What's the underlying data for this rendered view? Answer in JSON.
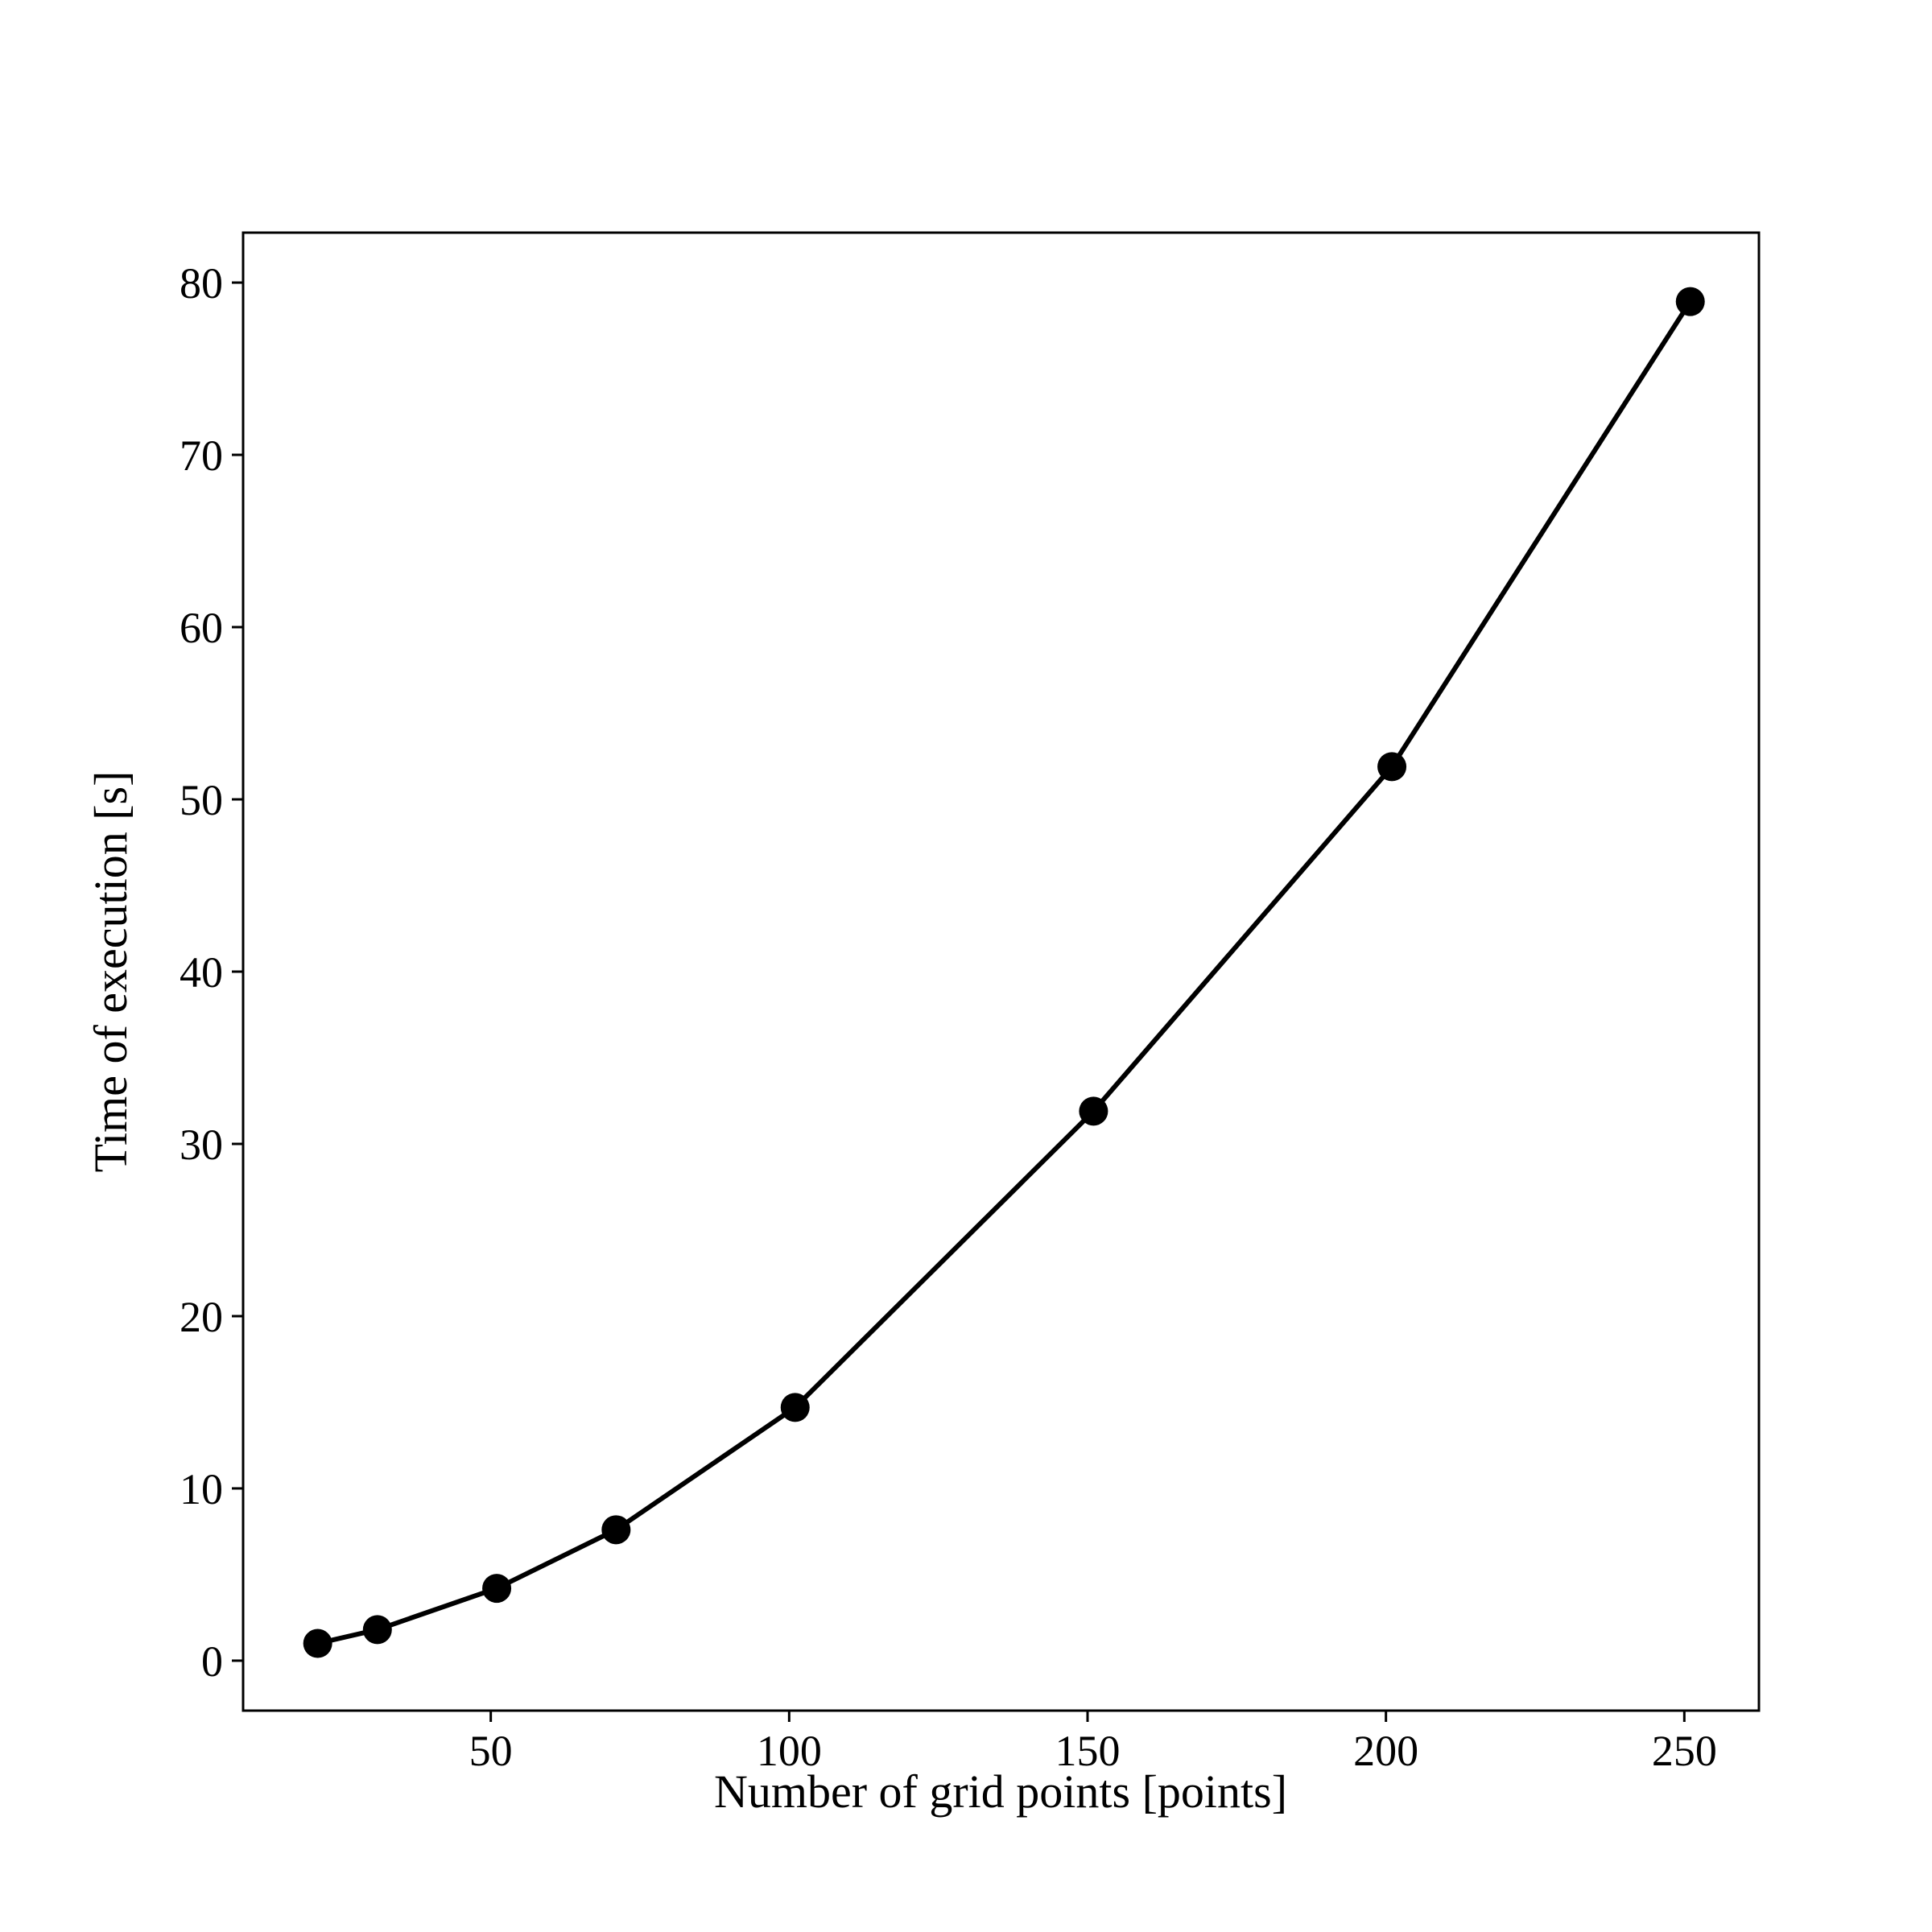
{
  "chart_data": {
    "type": "line",
    "title": "",
    "xlabel": "Number of grid points [points]",
    "ylabel": "Time of execution [s]",
    "xlim": [
      8.5,
      262.5
    ],
    "ylim": [
      -2.9,
      82.9
    ],
    "xticks": [
      50,
      100,
      150,
      200,
      250
    ],
    "yticks": [
      0,
      10,
      20,
      30,
      40,
      50,
      60,
      70,
      80
    ],
    "grid": false,
    "legend": "none",
    "series": [
      {
        "x": [
          21,
          31,
          51,
          71,
          101,
          151,
          201,
          251
        ],
        "y": [
          1.0,
          1.8,
          4.2,
          7.6,
          14.7,
          31.9,
          51.9,
          78.9
        ],
        "color": "#000000",
        "marker": "circle",
        "line": "solid"
      }
    ]
  }
}
